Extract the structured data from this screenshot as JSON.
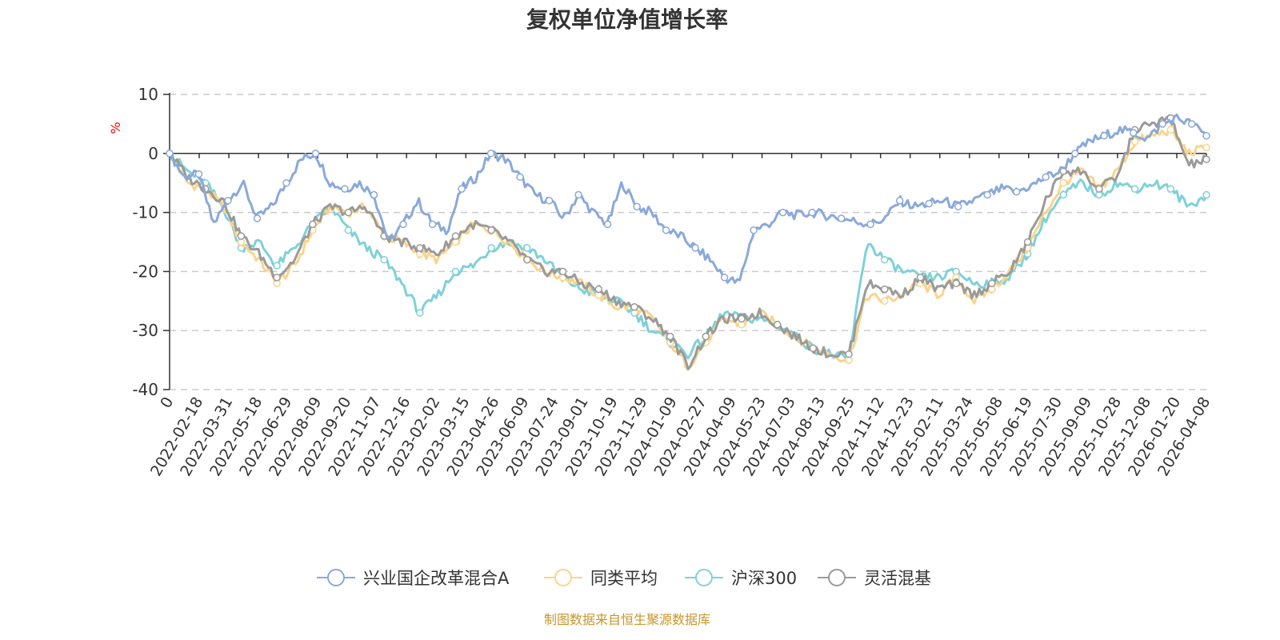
{
  "chart_data": {
    "type": "line",
    "title": "复权单位净值增长率",
    "ylabel": "%",
    "xlabel": "",
    "ylim": [
      -40,
      10
    ],
    "yticks": [
      10,
      0,
      -10,
      -20,
      -30,
      -40
    ],
    "x_tick_labels": [
      "0",
      "2022-02-18",
      "2022-03-31",
      "2022-05-18",
      "2022-06-29",
      "2022-08-09",
      "2022-09-20",
      "2022-11-07",
      "2022-12-16",
      "2023-02-02",
      "2023-03-15",
      "2023-04-26",
      "2023-06-09",
      "2023-07-24",
      "2023-09-01",
      "2023-10-19",
      "2023-11-29",
      "2024-01-09",
      "2024-02-27",
      "2024-04-09",
      "2024-05-23",
      "2024-07-03",
      "2024-08-13",
      "2024-09-25",
      "2024-11-12",
      "2024-12-23",
      "2025-02-11",
      "2025-03-24",
      "2025-05-08",
      "2025-06-19",
      "2025-07-30",
      "2025-09-09",
      "2025-10-28",
      "2025-12-08",
      "2026-01-20",
      "2026-04-08"
    ],
    "grid": true,
    "legend_position": "bottom",
    "source_note": "制图数据来自恒生聚源数据库",
    "series": [
      {
        "name": "兴业国企改革混合A",
        "color": "#8aa9d9",
        "values": [
          0,
          -4,
          -3.5,
          -12,
          -8,
          -5,
          -11,
          -9,
          -5,
          -1,
          0,
          -5,
          -6,
          -5,
          -7,
          -15,
          -12,
          -8,
          -12,
          -13,
          -6,
          -4,
          0,
          -1,
          -4,
          -7,
          -8,
          -11,
          -7,
          -10,
          -12,
          -5,
          -9,
          -10,
          -13,
          -14,
          -16,
          -18,
          -21,
          -22,
          -13,
          -12,
          -10,
          -10.5,
          -10,
          -10.5,
          -11,
          -11.5,
          -12,
          -11,
          -8,
          -9,
          -8.5,
          -8,
          -9,
          -8,
          -7,
          -6,
          -6.5,
          -5.5,
          -4,
          -3,
          0,
          2,
          3,
          4,
          3.5,
          2.5,
          5,
          6,
          5,
          3
        ]
      },
      {
        "name": "同类平均",
        "color": "#fad48b",
        "values": [
          0,
          -5,
          -6,
          -9,
          -15,
          -18,
          -22,
          -19,
          -13,
          -9,
          -10,
          -9,
          -14,
          -15,
          -17,
          -18,
          -15,
          -12,
          -13,
          -15,
          -18,
          -20,
          -21,
          -22,
          -24,
          -26,
          -26,
          -28,
          -32,
          -36,
          -32,
          -28,
          -29,
          -27,
          -29,
          -31,
          -33,
          -34,
          -35,
          -24,
          -25,
          -24,
          -22,
          -24,
          -21,
          -25,
          -23,
          -20,
          -16,
          -10,
          -5,
          -3,
          -6,
          -3,
          2,
          3,
          4,
          0,
          1
        ]
      },
      {
        "name": "沪深300",
        "color": "#7fd1d8",
        "values": [
          0,
          -3,
          -5,
          -9,
          -16,
          -15,
          -19,
          -16,
          -12,
          -9,
          -13,
          -16,
          -18,
          -22,
          -27,
          -24,
          -20,
          -19,
          -16,
          -15,
          -16,
          -18,
          -21,
          -23,
          -24,
          -25,
          -27,
          -30,
          -32,
          -34,
          -31,
          -27,
          -28,
          -28,
          -29,
          -31,
          -33,
          -34,
          -35,
          -15,
          -18,
          -20,
          -21,
          -21,
          -20,
          -22,
          -22,
          -21,
          -17,
          -11,
          -7,
          -5,
          -7,
          -5,
          -6,
          -5,
          -6,
          -9,
          -7
        ]
      },
      {
        "name": "灵活混基",
        "color": "#9a9a9a",
        "values": [
          0,
          -4,
          -6,
          -8,
          -14,
          -17,
          -21,
          -18,
          -12,
          -9,
          -10,
          -9,
          -14,
          -15,
          -16,
          -17,
          -14,
          -12,
          -13,
          -15,
          -18,
          -20,
          -20,
          -22,
          -23,
          -25,
          -26,
          -28,
          -31,
          -36,
          -31,
          -28,
          -28,
          -27,
          -29,
          -31,
          -33,
          -34,
          -34,
          -22,
          -23,
          -24,
          -21,
          -23,
          -22,
          -24,
          -22,
          -20,
          -15,
          -8,
          -3,
          -3,
          -6,
          -4,
          4,
          5,
          6,
          -2,
          -1
        ]
      }
    ]
  }
}
